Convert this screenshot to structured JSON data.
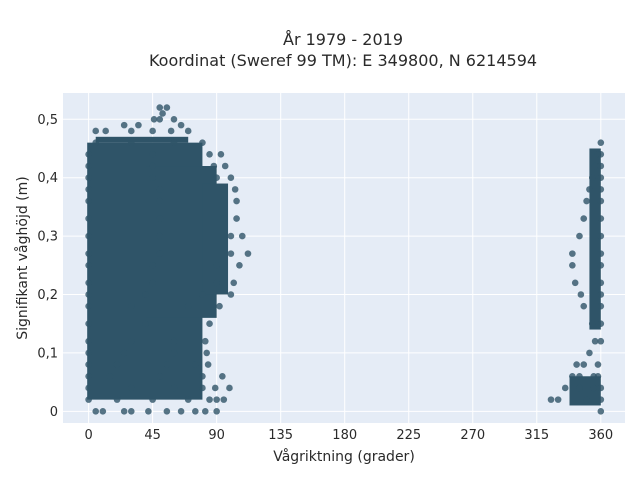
{
  "chart_data": {
    "type": "scatter",
    "title_line1": "År 1979 - 2019",
    "title_line2": "Koordinat (Sweref 99 TM): E 349800, N 6214594",
    "xlabel": "Vågriktning (grader)",
    "ylabel": "Signifikant våghöjd (m)",
    "xlim": [
      -18,
      377
    ],
    "ylim": [
      -0.02,
      0.545
    ],
    "x_ticks": [
      0,
      45,
      90,
      135,
      180,
      225,
      270,
      315,
      360
    ],
    "x_tick_labels": [
      "0",
      "45",
      "90",
      "135",
      "180",
      "225",
      "270",
      "315",
      "360"
    ],
    "y_ticks": [
      0,
      0.1,
      0.2,
      0.3,
      0.4,
      0.5
    ],
    "y_tick_labels": [
      "0",
      "0,1",
      "0,2",
      "0,3",
      "0,4",
      "0,5"
    ],
    "grid": true,
    "marker_color": "#2f5468",
    "plot_background": "#e5ecf6",
    "points": [
      [
        5,
        0
      ],
      [
        10,
        0
      ],
      [
        25,
        0
      ],
      [
        30,
        0
      ],
      [
        42,
        0
      ],
      [
        55,
        0
      ],
      [
        65,
        0
      ],
      [
        75,
        0
      ],
      [
        82,
        0
      ],
      [
        90,
        0
      ],
      [
        360,
        0
      ],
      [
        0,
        0.02
      ],
      [
        20,
        0.02
      ],
      [
        45,
        0.02
      ],
      [
        70,
        0.02
      ],
      [
        85,
        0.02
      ],
      [
        90,
        0.02
      ],
      [
        95,
        0.02
      ],
      [
        325,
        0.02
      ],
      [
        330,
        0.02
      ],
      [
        350,
        0.02
      ],
      [
        360,
        0.02
      ],
      [
        0,
        0.04
      ],
      [
        30,
        0.04
      ],
      [
        60,
        0.04
      ],
      [
        80,
        0.04
      ],
      [
        89,
        0.04
      ],
      [
        99,
        0.04
      ],
      [
        335,
        0.04
      ],
      [
        345,
        0.04
      ],
      [
        355,
        0.04
      ],
      [
        360,
        0.04
      ],
      [
        0,
        0.06
      ],
      [
        15,
        0.06
      ],
      [
        50,
        0.06
      ],
      [
        80,
        0.06
      ],
      [
        94,
        0.06
      ],
      [
        340,
        0.06
      ],
      [
        345,
        0.06
      ],
      [
        355,
        0.06
      ],
      [
        358,
        0.06
      ],
      [
        0,
        0.08
      ],
      [
        20,
        0.08
      ],
      [
        55,
        0.08
      ],
      [
        75,
        0.08
      ],
      [
        84,
        0.08
      ],
      [
        343,
        0.08
      ],
      [
        348,
        0.08
      ],
      [
        358,
        0.08
      ],
      [
        0,
        0.1
      ],
      [
        25,
        0.1
      ],
      [
        60,
        0.1
      ],
      [
        83,
        0.1
      ],
      [
        352,
        0.1
      ],
      [
        0,
        0.12
      ],
      [
        30,
        0.12
      ],
      [
        60,
        0.12
      ],
      [
        82,
        0.12
      ],
      [
        356,
        0.12
      ],
      [
        360,
        0.12
      ],
      [
        0,
        0.15
      ],
      [
        40,
        0.15
      ],
      [
        85,
        0.15
      ],
      [
        354,
        0.15
      ],
      [
        360,
        0.15
      ],
      [
        0,
        0.18
      ],
      [
        30,
        0.18
      ],
      [
        70,
        0.18
      ],
      [
        92,
        0.18
      ],
      [
        348,
        0.18
      ],
      [
        360,
        0.18
      ],
      [
        0,
        0.2
      ],
      [
        40,
        0.2
      ],
      [
        80,
        0.2
      ],
      [
        100,
        0.2
      ],
      [
        346,
        0.2
      ],
      [
        360,
        0.2
      ],
      [
        0,
        0.22
      ],
      [
        45,
        0.22
      ],
      [
        90,
        0.22
      ],
      [
        102,
        0.22
      ],
      [
        342,
        0.22
      ],
      [
        360,
        0.22
      ],
      [
        0,
        0.25
      ],
      [
        45,
        0.25
      ],
      [
        90,
        0.25
      ],
      [
        106,
        0.25
      ],
      [
        340,
        0.25
      ],
      [
        360,
        0.25
      ],
      [
        0,
        0.27
      ],
      [
        50,
        0.27
      ],
      [
        100,
        0.27
      ],
      [
        112,
        0.27
      ],
      [
        340,
        0.27
      ],
      [
        360,
        0.27
      ],
      [
        0,
        0.3
      ],
      [
        50,
        0.3
      ],
      [
        100,
        0.3
      ],
      [
        108,
        0.3
      ],
      [
        345,
        0.3
      ],
      [
        360,
        0.3
      ],
      [
        0,
        0.33
      ],
      [
        50,
        0.33
      ],
      [
        95,
        0.33
      ],
      [
        104,
        0.33
      ],
      [
        348,
        0.33
      ],
      [
        360,
        0.33
      ],
      [
        0,
        0.36
      ],
      [
        50,
        0.36
      ],
      [
        95,
        0.36
      ],
      [
        104,
        0.36
      ],
      [
        350,
        0.36
      ],
      [
        360,
        0.36
      ],
      [
        0,
        0.38
      ],
      [
        50,
        0.38
      ],
      [
        95,
        0.38
      ],
      [
        103,
        0.38
      ],
      [
        352,
        0.38
      ],
      [
        360,
        0.38
      ],
      [
        0,
        0.4
      ],
      [
        45,
        0.4
      ],
      [
        90,
        0.4
      ],
      [
        100,
        0.4
      ],
      [
        354,
        0.4
      ],
      [
        360,
        0.4
      ],
      [
        0,
        0.42
      ],
      [
        45,
        0.42
      ],
      [
        88,
        0.42
      ],
      [
        96,
        0.42
      ],
      [
        356,
        0.42
      ],
      [
        360,
        0.42
      ],
      [
        0,
        0.44
      ],
      [
        45,
        0.44
      ],
      [
        85,
        0.44
      ],
      [
        93,
        0.44
      ],
      [
        358,
        0.44
      ],
      [
        360,
        0.44
      ],
      [
        5,
        0.46
      ],
      [
        30,
        0.46
      ],
      [
        60,
        0.46
      ],
      [
        80,
        0.46
      ],
      [
        360,
        0.46
      ],
      [
        5,
        0.48
      ],
      [
        12,
        0.48
      ],
      [
        30,
        0.48
      ],
      [
        45,
        0.48
      ],
      [
        58,
        0.48
      ],
      [
        70,
        0.48
      ],
      [
        25,
        0.49
      ],
      [
        35,
        0.49
      ],
      [
        46,
        0.5
      ],
      [
        50,
        0.5
      ],
      [
        60,
        0.5
      ],
      [
        65,
        0.49
      ],
      [
        50,
        0.52
      ],
      [
        55,
        0.52
      ],
      [
        52,
        0.51
      ]
    ]
  }
}
